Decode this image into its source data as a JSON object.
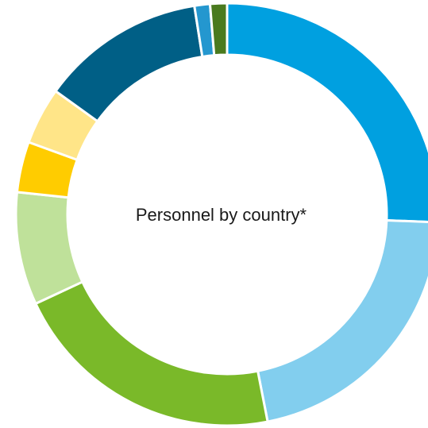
{
  "chart_data": {
    "type": "pie",
    "title": "Personnel by country*",
    "slices": [
      {
        "value": 25.8,
        "color": "#00A0E0"
      },
      {
        "value": 21.5,
        "color": "#82CEEE"
      },
      {
        "value": 21.3,
        "color": "#7AB929"
      },
      {
        "value": 8.7,
        "color": "#BFE19A"
      },
      {
        "value": 3.9,
        "color": "#FFCC00"
      },
      {
        "value": 4.4,
        "color": "#FFE588"
      },
      {
        "value": 12.7,
        "color": "#005F86"
      },
      {
        "value": 1.2,
        "color": "#2497CF"
      },
      {
        "value": 1.3,
        "color": "#4A7A1E"
      }
    ]
  }
}
